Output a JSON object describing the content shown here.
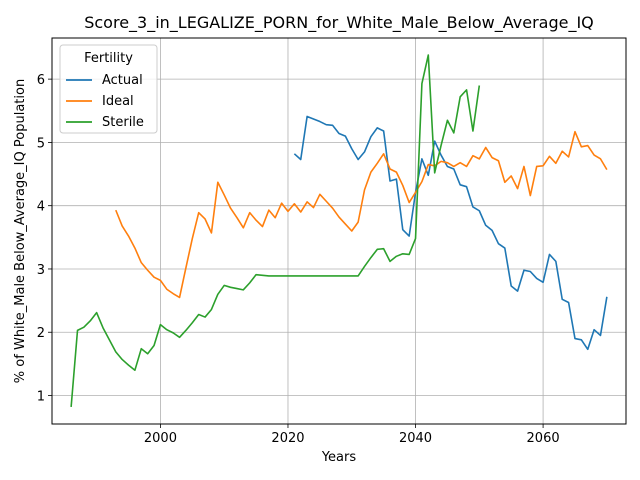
{
  "chart_data": {
    "type": "line",
    "title": "Score_3_in_LEGALIZE_PORN_for_White_Male_Below_Average_IQ",
    "xlabel": "Years",
    "ylabel": "% of White_Male Below_Average_IQ Population",
    "xlim": [
      1983,
      2073
    ],
    "ylim": [
      0.55,
      6.65
    ],
    "xticks": [
      2000,
      2020,
      2040,
      2060
    ],
    "yticks": [
      1,
      2,
      3,
      4,
      5,
      6
    ],
    "grid": true,
    "legend": {
      "title": "Fertility",
      "placement": "top-left"
    },
    "series": [
      {
        "name": "Actual",
        "color": "#1f77b4",
        "x": [
          2021,
          2022,
          2023,
          2024,
          2025,
          2026,
          2027,
          2028,
          2029,
          2030,
          2031,
          2032,
          2033,
          2034,
          2035,
          2036,
          2037,
          2038,
          2039,
          2040,
          2041,
          2042,
          2043,
          2044,
          2045,
          2046,
          2047,
          2048,
          2049,
          2050,
          2051,
          2052,
          2053,
          2054,
          2055,
          2056,
          2057,
          2058,
          2059,
          2060,
          2061,
          2062,
          2063,
          2064,
          2065,
          2066,
          2067,
          2068,
          2069,
          2070
        ],
        "y": [
          4.82,
          4.73,
          5.41,
          5.37,
          5.33,
          5.28,
          5.27,
          5.14,
          5.1,
          4.9,
          4.73,
          4.85,
          5.09,
          5.23,
          5.18,
          4.39,
          4.42,
          3.62,
          3.52,
          4.21,
          4.74,
          4.48,
          5.02,
          4.8,
          4.62,
          4.58,
          4.33,
          4.3,
          3.98,
          3.92,
          3.69,
          3.61,
          3.4,
          3.33,
          2.73,
          2.65,
          2.98,
          2.96,
          2.85,
          2.79,
          3.23,
          3.12,
          2.52,
          2.47,
          1.9,
          1.88,
          1.73,
          2.04,
          1.95,
          2.56
        ]
      },
      {
        "name": "Ideal",
        "color": "#ff7f0e",
        "x": [
          1993,
          1994,
          1995,
          1996,
          1997,
          1998,
          1999,
          2000,
          2001,
          2002,
          2003,
          2004,
          2005,
          2006,
          2007,
          2008,
          2009,
          2010,
          2011,
          2012,
          2013,
          2014,
          2015,
          2016,
          2017,
          2018,
          2019,
          2020,
          2021,
          2022,
          2023,
          2024,
          2025,
          2026,
          2027,
          2028,
          2029,
          2030,
          2031,
          2032,
          2033,
          2034,
          2035,
          2036,
          2037,
          2038,
          2039,
          2040,
          2041,
          2042,
          2043,
          2044,
          2045,
          2046,
          2047,
          2048,
          2049,
          2050,
          2051,
          2052,
          2053,
          2054,
          2055,
          2056,
          2057,
          2058,
          2059,
          2060,
          2061,
          2062,
          2063,
          2064,
          2065,
          2066,
          2067,
          2068,
          2069,
          2070
        ],
        "y": [
          3.93,
          3.68,
          3.52,
          3.33,
          3.1,
          2.98,
          2.87,
          2.82,
          2.68,
          2.61,
          2.55,
          3.02,
          3.48,
          3.89,
          3.79,
          3.57,
          4.37,
          4.17,
          3.96,
          3.81,
          3.65,
          3.89,
          3.77,
          3.67,
          3.93,
          3.81,
          4.04,
          3.91,
          4.03,
          3.9,
          4.06,
          3.97,
          4.18,
          4.07,
          3.96,
          3.82,
          3.71,
          3.6,
          3.74,
          4.25,
          4.53,
          4.67,
          4.82,
          4.58,
          4.53,
          4.32,
          4.05,
          4.21,
          4.38,
          4.65,
          4.63,
          4.7,
          4.68,
          4.62,
          4.68,
          4.62,
          4.79,
          4.74,
          4.92,
          4.76,
          4.71,
          4.37,
          4.47,
          4.27,
          4.62,
          4.16,
          4.62,
          4.63,
          4.78,
          4.67,
          4.86,
          4.77,
          5.17,
          4.93,
          4.95,
          4.8,
          4.74,
          4.57
        ]
      },
      {
        "name": "Sterile",
        "color": "#2ca02c",
        "x": [
          1986,
          1987,
          1988,
          1989,
          1990,
          1991,
          1992,
          1993,
          1994,
          1995,
          1996,
          1997,
          1998,
          1999,
          2000,
          2001,
          2002,
          2003,
          2004,
          2005,
          2006,
          2007,
          2008,
          2009,
          2010,
          2011,
          2012,
          2013,
          2014,
          2015,
          2016,
          2017,
          2018,
          2019,
          2020,
          2021,
          2022,
          2023,
          2024,
          2025,
          2026,
          2027,
          2028,
          2029,
          2030,
          2031,
          2032,
          2033,
          2034,
          2035,
          2036,
          2037,
          2038,
          2039,
          2040,
          2041,
          2042,
          2043,
          2044,
          2045,
          2046,
          2047,
          2048,
          2049,
          2050
        ],
        "y": [
          0.82,
          2.03,
          2.08,
          2.18,
          2.31,
          2.07,
          1.88,
          1.69,
          1.57,
          1.48,
          1.4,
          1.74,
          1.66,
          1.79,
          2.12,
          2.04,
          1.99,
          1.92,
          2.03,
          2.15,
          2.28,
          2.24,
          2.36,
          2.6,
          2.74,
          2.71,
          2.69,
          2.67,
          2.78,
          2.91,
          2.9,
          2.89,
          2.89,
          2.89,
          2.89,
          2.89,
          2.89,
          2.89,
          2.89,
          2.89,
          2.89,
          2.89,
          2.89,
          2.89,
          2.89,
          2.89,
          3.04,
          3.18,
          3.31,
          3.32,
          3.12,
          3.2,
          3.24,
          3.23,
          3.48,
          5.93,
          6.38,
          4.52,
          4.95,
          5.35,
          5.15,
          5.72,
          5.83,
          5.18,
          5.9
        ]
      }
    ]
  }
}
